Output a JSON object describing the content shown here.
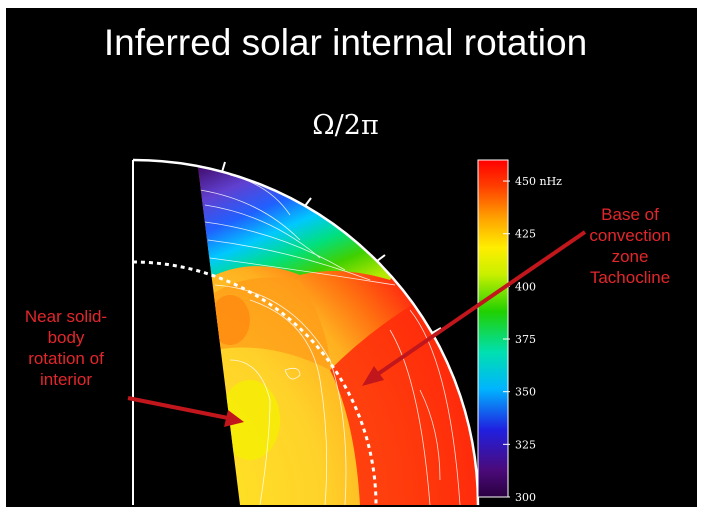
{
  "slide": {
    "title": "Inferred solar internal rotation",
    "quantity": "Ω/2π"
  },
  "annotations": {
    "left": [
      "Near solid-",
      "body",
      "rotation of",
      "interior"
    ],
    "right": [
      "Base of",
      "convection",
      "zone",
      "Tachocline"
    ]
  },
  "colorbar": {
    "unit_suffix": " nHz",
    "ticks": [
      {
        "value": 450,
        "label": "450 nHz"
      },
      {
        "value": 425,
        "label": "425"
      },
      {
        "value": 400,
        "label": "400"
      },
      {
        "value": 375,
        "label": "375"
      },
      {
        "value": 350,
        "label": "350"
      },
      {
        "value": 325,
        "label": "325"
      },
      {
        "value": 300,
        "label": "300"
      }
    ],
    "min": 300,
    "max": 460
  },
  "colors": {
    "background": "#000000",
    "annotation": "#e3262b",
    "arrow": "#c0161c",
    "text": "#ffffff"
  }
}
